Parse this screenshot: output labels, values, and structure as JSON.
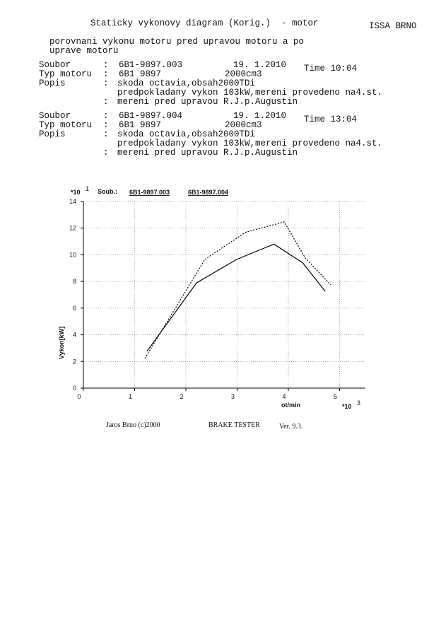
{
  "header": {
    "title": "Staticky vykonovy diagram (Korig.)",
    "subtitle": "- motor",
    "company": "ISSA BRNO"
  },
  "description": [
    "porovnani vykonu motoru pred upravou motoru a po",
    "uprave motoru"
  ],
  "separator": ":",
  "records": [
    {
      "soubor_label": "Soubor",
      "soubor": "6B1-9897.003",
      "date": "19. 1.2010",
      "time": "Time 10:04",
      "typ_label": "Typ motoru",
      "typ": "6B1 9897",
      "volume": "2000cm3",
      "popis_label": "Popis",
      "popis": [
        "skoda octavia,obsah2000TDi",
        "predpokladany vykon 103kW,mereni provedeno na4.st.",
        "mereni pred upravou R.J.p.Augustin"
      ]
    },
    {
      "soubor_label": "Soubor",
      "soubor": "6B1-9897.004",
      "date": "19. 1.2010",
      "time": "Time 13:04",
      "typ_label": "Typ motoru",
      "typ": "6B1 9897",
      "volume": "2000cm3",
      "popis_label": "Popis",
      "popis": [
        "skoda octavia,obsah2000TDi",
        "predpokladany vykon 103kW,mereni provedeno na4.st.",
        "mereni pred upravou R.J.p.Augustin"
      ]
    }
  ],
  "chart_data": {
    "type": "line",
    "legend_title": "Soub.:",
    "y_multiplier": {
      "base": "*10",
      "exponent": "1"
    },
    "x_multiplier": {
      "base": "*10",
      "exponent": "3"
    },
    "y_label": "Vykon[kW]",
    "x_label": "ot/min",
    "xlim": [
      0,
      5.5
    ],
    "ylim": [
      0,
      14
    ],
    "xticks": [
      0,
      1,
      2,
      3,
      4,
      5
    ],
    "yticks": [
      0,
      2,
      4,
      6,
      8,
      10,
      12,
      14
    ],
    "grid": true,
    "series": [
      {
        "name": "6B1-9897.003",
        "color": "#000000",
        "dash": "none",
        "x": [
          1.24,
          2.21,
          2.99,
          3.72,
          4.28,
          4.72
        ],
        "values": [
          2.76,
          7.9,
          9.65,
          10.8,
          9.4,
          7.26
        ]
      },
      {
        "name": "6B1-9897.004",
        "color": "#000000",
        "dash": "2,2",
        "x": [
          1.2,
          2.37,
          3.17,
          3.92,
          4.33,
          4.83
        ],
        "values": [
          2.23,
          9.65,
          11.7,
          12.46,
          9.76,
          7.74
        ]
      }
    ]
  },
  "footer": {
    "author": "Jaros Brno (c)2000",
    "device": "BRAKE TESTER",
    "version": "Ver. 9.3."
  }
}
